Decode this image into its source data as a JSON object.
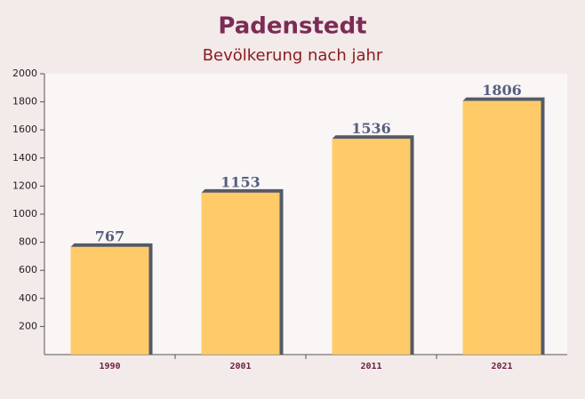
{
  "chart_data": {
    "type": "bar",
    "title": "Padenstedt",
    "subtitle": "Bevölkerung nach jahr",
    "categories": [
      "1990",
      "2001",
      "2011",
      "2021"
    ],
    "values": [
      767,
      1153,
      1536,
      1806
    ],
    "color": "#ffc65a",
    "ylim": [
      0,
      2000
    ],
    "yticks": [
      200,
      400,
      600,
      800,
      1000,
      1200,
      1400,
      1600,
      1800,
      2000
    ]
  }
}
